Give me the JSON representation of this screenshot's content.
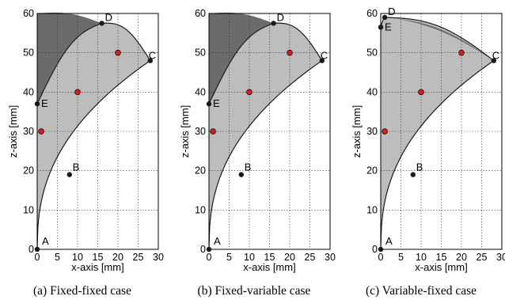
{
  "chart_data": [
    {
      "type": "area",
      "caption": "(a) Fixed-fixed case",
      "xlabel": "x-axis [mm]",
      "ylabel": "z-axis [mm]",
      "xlim": [
        0,
        30
      ],
      "ylim": [
        0,
        60
      ],
      "xticks": [
        "0",
        "5",
        "10",
        "15",
        "20",
        "25",
        "30"
      ],
      "yticks": [
        "0",
        "10",
        "20",
        "30",
        "40",
        "50",
        "60"
      ],
      "grid": true,
      "points": [
        {
          "label": "A",
          "x": 0,
          "y": 0
        },
        {
          "label": "B",
          "x": 8,
          "y": 19
        },
        {
          "label": "C",
          "x": 28,
          "y": 48
        },
        {
          "label": "D",
          "x": 16,
          "y": 57.5
        },
        {
          "label": "E",
          "x": 0,
          "y": 37
        }
      ],
      "red_points": [
        [
          1,
          30
        ],
        [
          10,
          40
        ],
        [
          20,
          50
        ]
      ]
    },
    {
      "type": "area",
      "caption": "(b) Fixed-variable case",
      "xlabel": "x-axis [mm]",
      "ylabel": "z-axis [mm]",
      "xlim": [
        0,
        30
      ],
      "ylim": [
        0,
        60
      ],
      "xticks": [
        "0",
        "5",
        "10",
        "15",
        "20",
        "25",
        "30"
      ],
      "yticks": [
        "0",
        "10",
        "20",
        "30",
        "40",
        "50",
        "60"
      ],
      "grid": true,
      "points": [
        {
          "label": "A",
          "x": 0,
          "y": 0
        },
        {
          "label": "B",
          "x": 8,
          "y": 19
        },
        {
          "label": "C",
          "x": 28,
          "y": 48
        },
        {
          "label": "D",
          "x": 16,
          "y": 57.5
        },
        {
          "label": "E",
          "x": 0,
          "y": 37
        }
      ],
      "red_points": [
        [
          1,
          30
        ],
        [
          10,
          40
        ],
        [
          20,
          50
        ]
      ]
    },
    {
      "type": "area",
      "caption": "(c) Variable-fixed case",
      "xlabel": "x-axis [mm]",
      "ylabel": "z-axis [mm]",
      "xlim": [
        0,
        30
      ],
      "ylim": [
        0,
        60
      ],
      "xticks": [
        "0",
        "5",
        "10",
        "15",
        "20",
        "25",
        "30"
      ],
      "yticks": [
        "0",
        "10",
        "20",
        "30",
        "40",
        "50",
        "60"
      ],
      "grid": true,
      "points": [
        {
          "label": "A",
          "x": 0,
          "y": 0
        },
        {
          "label": "B",
          "x": 8,
          "y": 19
        },
        {
          "label": "C",
          "x": 28,
          "y": 48
        },
        {
          "label": "D",
          "x": 1,
          "y": 59
        },
        {
          "label": "E",
          "x": 0,
          "y": 56.5
        }
      ],
      "red_points": [
        [
          1,
          30
        ],
        [
          10,
          40
        ],
        [
          20,
          50
        ]
      ]
    }
  ],
  "colors": {
    "light_region": "#bdbdbd",
    "dark_region": "#6b6b6b",
    "point_black": "#1a1a1a",
    "point_red": "#d42020",
    "grid": "#333333"
  }
}
